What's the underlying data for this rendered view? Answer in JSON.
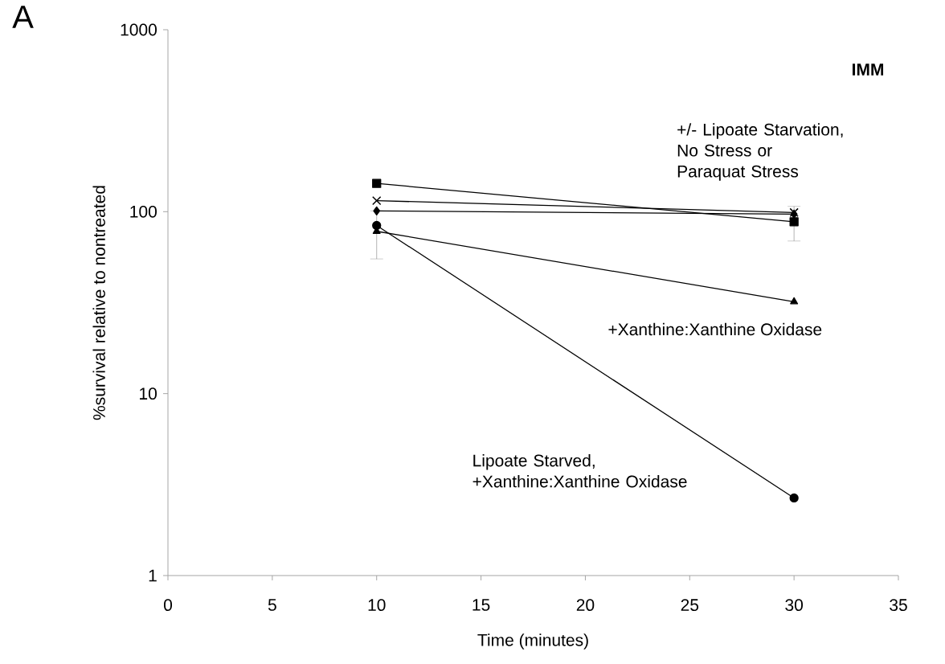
{
  "chart_data": {
    "type": "line",
    "xlabel": "Time (minutes)",
    "ylabel": "%survival relative to nontreated",
    "log": "y",
    "xlim": [
      0,
      35
    ],
    "xticks": [
      0,
      5,
      10,
      15,
      20,
      25,
      30,
      35
    ],
    "ylim": [
      1,
      1000
    ],
    "yticks": [
      1,
      10,
      100,
      1000
    ],
    "grid": false,
    "line_style": "solid",
    "x": [
      10,
      30
    ],
    "series": [
      {
        "color": "#000000",
        "marker": "square",
        "values": [
          143,
          88
        ],
        "errors": [
          null,
          19
        ]
      },
      {
        "color": "#000000",
        "marker": "cross",
        "values": [
          115,
          99
        ]
      },
      {
        "color": "#000000",
        "marker": "diamond",
        "values": [
          101,
          97
        ]
      },
      {
        "color": "#000000",
        "marker": "circle",
        "values": [
          84,
          2.67
        ]
      },
      {
        "color": "#000000",
        "marker": "triangle",
        "values": [
          78,
          32
        ],
        "errors": [
          23,
          null
        ]
      }
    ],
    "annotations": [
      "A",
      "IMM",
      "+/- Lipoate Starvation, No Stress or Paraquat Stress",
      "+Xanthine:Xanthine Oxidase",
      "Lipoate Starved, +Xanthine:Xanthine Oxidase"
    ]
  }
}
